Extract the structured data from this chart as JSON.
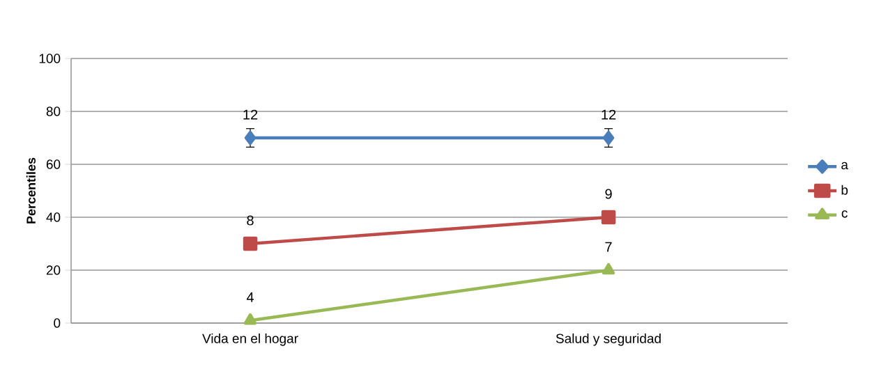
{
  "chart_data": {
    "type": "line",
    "ylabel": "Percentiles",
    "categories": [
      "Vida en el hogar",
      "Salud y seguridad"
    ],
    "series": [
      {
        "name": "a",
        "color": "#4a7ebb",
        "marker": "diamond",
        "values": [
          70,
          70
        ],
        "errors": [
          3.5,
          3.5
        ]
      },
      {
        "name": "b",
        "color": "#be4b48",
        "marker": "square",
        "values": [
          30,
          40
        ]
      },
      {
        "name": "c",
        "color": "#98b954",
        "marker": "triangle",
        "values": [
          1,
          20
        ]
      }
    ],
    "annotations": [
      {
        "text": "12",
        "x": "Vida en el hogar",
        "y": 70
      },
      {
        "text": "12",
        "x": "Salud y seguridad",
        "y": 70
      },
      {
        "text": "8",
        "x": "Vida en el hogar",
        "y": 30
      },
      {
        "text": "9",
        "x": "Salud y seguridad",
        "y": 40
      },
      {
        "text": "4",
        "x": "Vida en el hogar",
        "y": 1
      },
      {
        "text": "7",
        "x": "Salud y seguridad",
        "y": 20
      }
    ],
    "ylim": [
      0,
      100
    ],
    "yticks": [
      0,
      20,
      40,
      60,
      80,
      100
    ],
    "grid": "y",
    "legend": "right",
    "line_style": "solid"
  }
}
